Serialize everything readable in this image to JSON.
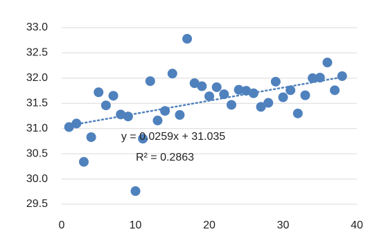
{
  "chart_data": {
    "type": "scatter",
    "x": [
      1,
      2,
      3,
      4,
      5,
      6,
      7,
      8,
      9,
      10,
      11,
      12,
      13,
      14,
      15,
      16,
      17,
      18,
      19,
      20,
      21,
      22,
      23,
      24,
      25,
      26,
      27,
      28,
      29,
      30,
      31,
      32,
      33,
      34,
      35,
      36,
      37,
      38
    ],
    "values": [
      31.03,
      31.1,
      30.34,
      30.83,
      31.72,
      31.46,
      31.65,
      31.28,
      31.24,
      29.76,
      30.8,
      31.94,
      31.16,
      31.35,
      32.09,
      31.27,
      32.78,
      31.9,
      31.84,
      31.64,
      31.82,
      31.68,
      31.47,
      31.77,
      31.75,
      31.7,
      31.43,
      31.51,
      31.93,
      31.62,
      31.76,
      31.3,
      31.66,
      32.0,
      32.01,
      32.31,
      31.76,
      32.04
    ],
    "color": "#4f81bd",
    "xlim": [
      0,
      40
    ],
    "xticks": [
      0,
      10,
      20,
      30,
      40
    ],
    "ylim": [
      29.5,
      33
    ],
    "yticks": [
      29.5,
      {
        "value": 30,
        "label": "30.0"
      },
      30.5,
      {
        "value": 31,
        "label": "31.0"
      },
      31.5,
      {
        "value": 32,
        "label": "32.0"
      },
      32.5,
      {
        "value": 33,
        "label": "33.0"
      }
    ],
    "grid": true,
    "trendline": {
      "slope": 0.0259,
      "intercept": 31.035,
      "equation": "y = 0.0259x + 31.035",
      "r_squared": "R² = 0.2863",
      "color": "#4f81bd"
    }
  }
}
